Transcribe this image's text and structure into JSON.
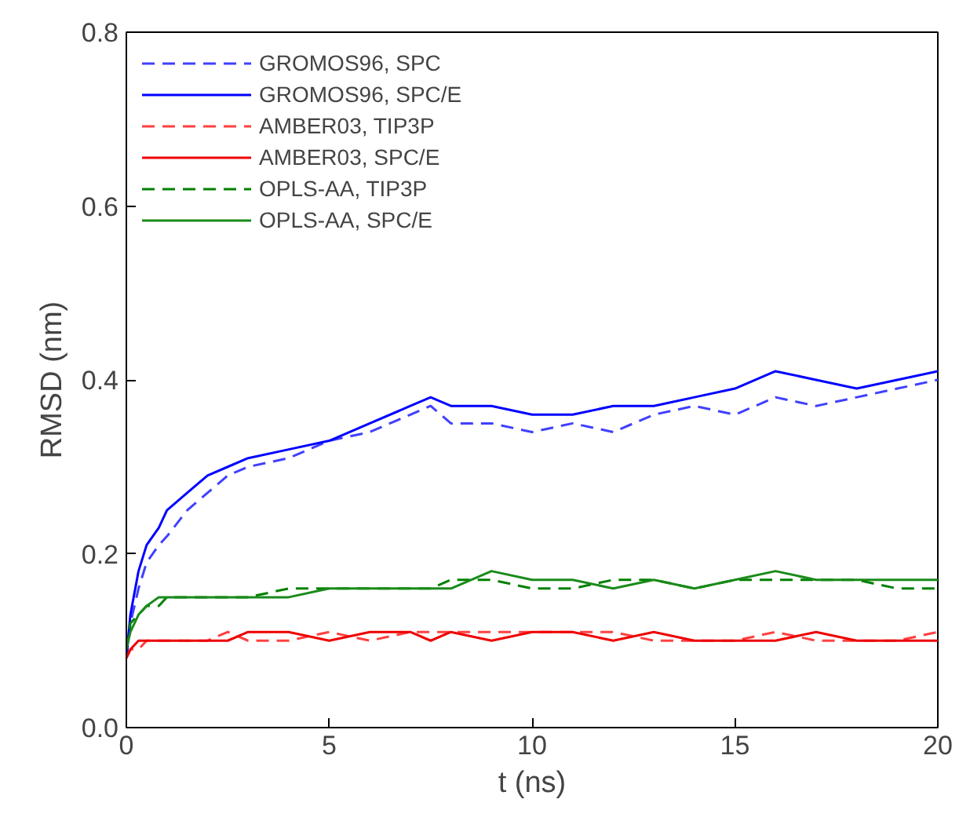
{
  "chart_data": {
    "type": "line",
    "xlabel": "t (ns)",
    "ylabel": "RMSD (nm)",
    "xlim": [
      0,
      20
    ],
    "ylim": [
      0,
      0.8
    ],
    "xticks": [
      0,
      5,
      10,
      15,
      20
    ],
    "yticks": [
      {
        "value": 0,
        "label": "0.0"
      },
      {
        "value": 0.2,
        "label": "0.2"
      },
      {
        "value": 0.4,
        "label": "0.4"
      },
      {
        "value": 0.6,
        "label": "0.6"
      },
      {
        "value": 0.8,
        "label": "0.8"
      }
    ],
    "grid": false,
    "legend": "top left",
    "marker": "none",
    "x": [
      0,
      0.1,
      0.3,
      0.5,
      0.8,
      1,
      1.5,
      2,
      2.5,
      3,
      4,
      5,
      6,
      7,
      7.5,
      8,
      9,
      10,
      11,
      12,
      13,
      14,
      15,
      16,
      17,
      18,
      19,
      20
    ],
    "series": [
      {
        "name": "GROMOS96, SPC",
        "color": "#4040ff",
        "line_style": "dashed",
        "values": [
          0.08,
          0.12,
          0.16,
          0.19,
          0.21,
          0.22,
          0.25,
          0.27,
          0.29,
          0.3,
          0.31,
          0.33,
          0.34,
          0.36,
          0.37,
          0.35,
          0.35,
          0.34,
          0.35,
          0.34,
          0.36,
          0.37,
          0.36,
          0.38,
          0.37,
          0.38,
          0.39,
          0.4
        ]
      },
      {
        "name": "GROMOS96, SPC/E",
        "color": "#0000ff",
        "line_style": "solid",
        "values": [
          0.08,
          0.13,
          0.18,
          0.21,
          0.23,
          0.25,
          0.27,
          0.29,
          0.3,
          0.31,
          0.32,
          0.33,
          0.35,
          0.37,
          0.38,
          0.37,
          0.37,
          0.36,
          0.36,
          0.37,
          0.37,
          0.38,
          0.39,
          0.41,
          0.4,
          0.39,
          0.4,
          0.41
        ]
      },
      {
        "name": "AMBER03, TIP3P",
        "color": "#ff4040",
        "line_style": "dashed",
        "values": [
          0.08,
          0.09,
          0.09,
          0.1,
          0.1,
          0.1,
          0.1,
          0.1,
          0.11,
          0.1,
          0.1,
          0.11,
          0.1,
          0.11,
          0.11,
          0.11,
          0.11,
          0.11,
          0.11,
          0.11,
          0.1,
          0.1,
          0.1,
          0.11,
          0.1,
          0.1,
          0.1,
          0.11
        ]
      },
      {
        "name": "AMBER03, SPC/E",
        "color": "#ee0000",
        "line_style": "solid",
        "values": [
          0.08,
          0.09,
          0.1,
          0.1,
          0.1,
          0.1,
          0.1,
          0.1,
          0.1,
          0.11,
          0.11,
          0.1,
          0.11,
          0.11,
          0.1,
          0.11,
          0.1,
          0.11,
          0.11,
          0.1,
          0.11,
          0.1,
          0.1,
          0.1,
          0.11,
          0.1,
          0.1,
          0.1
        ]
      },
      {
        "name": "OPLS-AA, TIP3P",
        "color": "#008000",
        "line_style": "dashed",
        "values": [
          0.09,
          0.12,
          0.13,
          0.14,
          0.14,
          0.15,
          0.15,
          0.15,
          0.15,
          0.15,
          0.16,
          0.16,
          0.16,
          0.16,
          0.16,
          0.17,
          0.17,
          0.16,
          0.16,
          0.17,
          0.17,
          0.16,
          0.17,
          0.17,
          0.17,
          0.17,
          0.16,
          0.16
        ]
      },
      {
        "name": "OPLS-AA, SPC/E",
        "color": "#1a8a1a",
        "line_style": "solid",
        "values": [
          0.09,
          0.11,
          0.13,
          0.14,
          0.15,
          0.15,
          0.15,
          0.15,
          0.15,
          0.15,
          0.15,
          0.16,
          0.16,
          0.16,
          0.16,
          0.16,
          0.18,
          0.17,
          0.17,
          0.16,
          0.17,
          0.16,
          0.17,
          0.18,
          0.17,
          0.17,
          0.17,
          0.17
        ]
      }
    ]
  }
}
